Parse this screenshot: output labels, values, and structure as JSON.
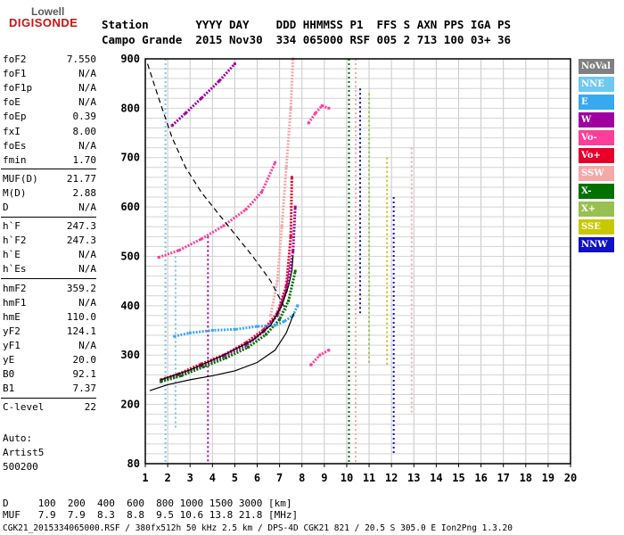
{
  "logo": {
    "top": "Lowell",
    "main": "DIGISONDE"
  },
  "header": {
    "line1": "Station       YYYY DAY    DDD HHMMSS P1  FFS S AXN PPS IGA PS",
    "line2": "Campo Grande  2015 Nov30  334 065000 RSF 005 2 713 100 03+ 36"
  },
  "params": [
    {
      "name": "foF2",
      "value": "7.550"
    },
    {
      "name": "foF1",
      "value": "N/A"
    },
    {
      "name": "foF1p",
      "value": "N/A"
    },
    {
      "name": "foE",
      "value": "N/A"
    },
    {
      "name": "foEp",
      "value": "0.39"
    },
    {
      "name": "fxI",
      "value": "8.00"
    },
    {
      "name": "foEs",
      "value": "N/A"
    },
    {
      "name": "fmin",
      "value": "1.70"
    },
    {
      "name": "MUF(D)",
      "value": "21.77"
    },
    {
      "name": "M(D)",
      "value": "2.88"
    },
    {
      "name": "D",
      "value": "N/A"
    },
    {
      "name": "h`F",
      "value": "247.3"
    },
    {
      "name": "h`F2",
      "value": "247.3"
    },
    {
      "name": "h`E",
      "value": "N/A"
    },
    {
      "name": "h`Es",
      "value": "N/A"
    },
    {
      "name": "hmF2",
      "value": "359.2"
    },
    {
      "name": "hmF1",
      "value": "N/A"
    },
    {
      "name": "hmE",
      "value": "110.0"
    },
    {
      "name": "yF2",
      "value": "124.1"
    },
    {
      "name": "yF1",
      "value": "N/A"
    },
    {
      "name": "yE",
      "value": "20.0"
    },
    {
      "name": "B0",
      "value": "92.1"
    },
    {
      "name": "B1",
      "value": "7.37"
    },
    {
      "name": "C-level",
      "value": "22"
    }
  ],
  "auto": {
    "line1": "Auto:",
    "line2": "Artist5",
    "line3": "500200"
  },
  "legend": [
    {
      "label": "NoVal",
      "color": "#808080"
    },
    {
      "label": "NNE",
      "color": "#6ec8f0"
    },
    {
      "label": "E",
      "color": "#38a8f0"
    },
    {
      "label": "W",
      "color": "#a000a0"
    },
    {
      "label": "Vo-",
      "color": "#ff3d9a"
    },
    {
      "label": "Vo+",
      "color": "#e8002a"
    },
    {
      "label": "SSW",
      "color": "#f4a8a8"
    },
    {
      "label": "X-",
      "color": "#007000"
    },
    {
      "label": "X+",
      "color": "#98c050"
    },
    {
      "label": "SSE",
      "color": "#c8c800"
    },
    {
      "label": "NNW",
      "color": "#1010c8"
    }
  ],
  "footer": {
    "line1": "D     100  200  400  600  800 1000 1500 3000 [km]",
    "line2": "MUF   7.9  7.9  8.3  8.8  9.5 10.6 13.8 21.8 [MHz]",
    "line3": "CGK21_2015334065000.RSF / 380fx512h 50 kHz 2.5 km / DPS-4D CGK21 821 / 20.5 S 305.0 E Ion2Png 1.3.20"
  },
  "chart_data": {
    "type": "scatter",
    "xlim": [
      1,
      20
    ],
    "ylim": [
      80,
      900
    ],
    "x_ticks": [
      "1",
      "2",
      "3",
      "4",
      "5",
      "6",
      "7",
      "8",
      "9",
      "10",
      "11",
      "12",
      "13",
      "14",
      "15",
      "16",
      "17",
      "18",
      "19",
      "20"
    ],
    "y_ticks": [
      "80",
      "200",
      "300",
      "400",
      "500",
      "600",
      "700",
      "800",
      "900"
    ],
    "grid": true,
    "legend_position": "right",
    "traces": [
      {
        "color": "#e8002a",
        "x": [
          1.7,
          2.5,
          3.5,
          4.5,
          5.5,
          6.3,
          6.9,
          7.3,
          7.5,
          7.55
        ],
        "y": [
          250,
          262,
          282,
          300,
          325,
          352,
          385,
          440,
          540,
          660
        ]
      },
      {
        "color": "#a000a0",
        "x": [
          1.7,
          2.5,
          3.5,
          4.5,
          5.5,
          6.3,
          6.9,
          7.3,
          7.6,
          7.7
        ],
        "y": [
          248,
          260,
          278,
          298,
          320,
          348,
          380,
          430,
          510,
          600
        ]
      },
      {
        "color": "#007000",
        "x": [
          1.7,
          2.6,
          3.6,
          4.6,
          5.6,
          6.4,
          7.0,
          7.4,
          7.7
        ],
        "y": [
          246,
          258,
          276,
          294,
          316,
          342,
          372,
          410,
          470
        ]
      },
      {
        "color": "#38a8f0",
        "x": [
          2.3,
          3,
          4,
          5,
          6,
          6.8,
          7.2,
          7.6,
          7.8
        ],
        "y": [
          338,
          345,
          350,
          352,
          358,
          360,
          368,
          380,
          400
        ]
      },
      {
        "color": "#f4a8a8",
        "x": [
          6.6,
          6.9,
          7.1,
          7.3,
          7.5,
          7.6
        ],
        "y": [
          380,
          450,
          560,
          680,
          800,
          900
        ]
      },
      {
        "color": "#ff3d9a",
        "x": [
          1.6,
          2.5,
          3.5,
          4.5,
          5.5,
          6.2,
          6.8
        ],
        "y": [
          498,
          512,
          535,
          562,
          595,
          630,
          690
        ]
      },
      {
        "color": "#a000a0",
        "x": [
          2.2,
          2.8,
          3.5,
          4.3,
          5.0
        ],
        "y": [
          765,
          790,
          820,
          855,
          890
        ]
      },
      {
        "color": "#ff3d9a",
        "x": [
          8.3,
          8.6,
          8.9,
          9.2
        ],
        "y": [
          770,
          790,
          805,
          800
        ]
      },
      {
        "color": "#ff3d9a",
        "x": [
          8.4,
          8.8,
          9.2
        ],
        "y": [
          280,
          300,
          310
        ]
      }
    ],
    "profile_lines": [
      {
        "name": "",
        "color": "#000000",
        "style": "solid",
        "x": [
          1.2,
          2,
          3,
          4,
          5,
          6,
          6.8,
          7.3,
          7.6,
          7.65
        ],
        "y": [
          228,
          240,
          250,
          258,
          268,
          285,
          310,
          345,
          380,
          385
        ]
      },
      {
        "name": "",
        "color": "#000000",
        "style": "solid",
        "x": [
          1.7,
          3,
          4.5,
          5.8,
          6.6,
          7.1,
          7.4,
          7.55,
          7.6
        ],
        "y": [
          250,
          270,
          300,
          330,
          360,
          400,
          440,
          470,
          500
        ]
      },
      {
        "name": "",
        "color": "#000000",
        "style": "dashed",
        "x": [
          1.1,
          1.6,
          2.2,
          2.8,
          3.5,
          4.2,
          5,
          5.8,
          6.6,
          7.3
        ],
        "y": [
          890,
          820,
          740,
          680,
          630,
          590,
          545,
          500,
          450,
          390
        ]
      }
    ],
    "vertical_bands": [
      {
        "color": "#6ec8f0",
        "x": 1.9,
        "y_range": [
          80,
          900
        ]
      },
      {
        "color": "#6ec8f0",
        "x": 2.35,
        "y_range": [
          150,
          500
        ]
      },
      {
        "color": "#a000a0",
        "x": 3.8,
        "y_range": [
          80,
          540
        ]
      },
      {
        "color": "#007000",
        "x": 10.1,
        "y_range": [
          80,
          900
        ]
      },
      {
        "color": "#f4a8a8",
        "x": 10.4,
        "y_range": [
          80,
          900
        ]
      },
      {
        "color": "#1010c8",
        "x": 10.6,
        "y_range": [
          380,
          840
        ]
      },
      {
        "color": "#98c050",
        "x": 11.0,
        "y_range": [
          280,
          830
        ]
      },
      {
        "color": "#c8c800",
        "x": 11.8,
        "y_range": [
          280,
          700
        ]
      },
      {
        "color": "#1010c8",
        "x": 12.1,
        "y_range": [
          100,
          620
        ]
      },
      {
        "color": "#f4a8a8",
        "x": 12.9,
        "y_range": [
          180,
          720
        ]
      }
    ]
  }
}
